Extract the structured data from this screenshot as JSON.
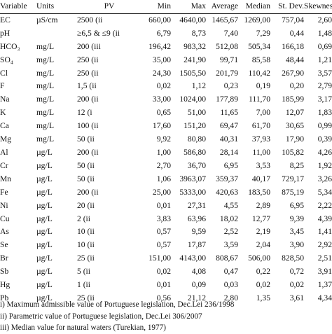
{
  "headers": [
    "Variable",
    "Units",
    "PV",
    "Min",
    "Max",
    "Average",
    "Median",
    "St. Dev.",
    "Skewness"
  ],
  "rows": [
    [
      "EC",
      "µS/cm",
      "2500 (ii",
      "660,00",
      "4640,00",
      "1465,67",
      "1269,00",
      "757,04",
      "2,60"
    ],
    [
      "pH",
      "",
      "≥6,5 & ≤9 (ii",
      "6,79",
      "8,73",
      "7,40",
      "7,29",
      "0,44",
      "1,48"
    ],
    [
      "HCO₃",
      "mg/L",
      "200 (iii",
      "196,42",
      "983,32",
      "512,08",
      "505,34",
      "166,18",
      "0,69"
    ],
    [
      "SO₄",
      "mg/L",
      "250 (ii",
      "35,00",
      "241,90",
      "99,71",
      "85,58",
      "48,44",
      "1,21"
    ],
    [
      "Cl",
      "mg/L",
      "250 (ii",
      "24,30",
      "1505,50",
      "201,79",
      "110,42",
      "267,90",
      "3,57"
    ],
    [
      "F",
      "mg/L",
      "1,5 (ii",
      "0,02",
      "1,12",
      "0,23",
      "0,19",
      "0,20",
      "2,79"
    ],
    [
      "Na",
      "mg/L",
      "200 (ii",
      "33,00",
      "1024,00",
      "177,89",
      "111,70",
      "185,99",
      "3,17"
    ],
    [
      "K",
      "mg/L",
      "12 (i",
      "0,65",
      "51,00",
      "11,65",
      "7,00",
      "12,07",
      "1,83"
    ],
    [
      "Ca",
      "mg/L",
      "100 (ii",
      "17,60",
      "151,20",
      "69,47",
      "61,70",
      "30,65",
      "0,99"
    ],
    [
      "Mg",
      "mg/L",
      "50 (ii",
      "9,92",
      "80,80",
      "40,31",
      "37,93",
      "17,90",
      "0,39"
    ],
    [
      "Al",
      "µg/L",
      "200 (ii",
      "1,00",
      "586,80",
      "28,14",
      "11,00",
      "105,82",
      "4,26"
    ],
    [
      "Cr",
      "µg/L",
      "50 (ii",
      "2,70",
      "36,70",
      "6,95",
      "3,53",
      "8,25",
      "1,92"
    ],
    [
      "Mn",
      "µg/L",
      "50 (ii",
      "1,06",
      "3963,07",
      "359,37",
      "40,17",
      "729,17",
      "3,26"
    ],
    [
      "Fe",
      "µg/L",
      "200 (ii",
      "25,00",
      "5333,00",
      "420,63",
      "183,50",
      "875,19",
      "5,34"
    ],
    [
      "Ni",
      "µg/L",
      "20 (ii",
      "0,01",
      "27,31",
      "4,55",
      "2,89",
      "6,95",
      "2,22"
    ],
    [
      "Cu",
      "µg/L",
      "2 (ii",
      "3,83",
      "63,96",
      "18,02",
      "12,77",
      "9,39",
      "4,39"
    ],
    [
      "As",
      "µg/L",
      "10 (ii",
      "0,57",
      "9,59",
      "2,52",
      "2,19",
      "3,45",
      "1,41"
    ],
    [
      "Se",
      "µg/L",
      "10 (ii",
      "0,57",
      "17,87",
      "3,59",
      "2,04",
      "3,90",
      "2,92"
    ],
    [
      "Br",
      "µg/L",
      "25 (ii",
      "151,00",
      "4143,00",
      "808,67",
      "506,00",
      "828,50",
      "2,51"
    ],
    [
      "Sb",
      "µg/L",
      "5 (ii",
      "0,02",
      "4,08",
      "0,47",
      "0,22",
      "0,72",
      "3,91"
    ],
    [
      "Hg",
      "µg/L",
      "1 (ii",
      "0,01",
      "0,09",
      "0,03",
      "0,02",
      "0,02",
      "1,37"
    ],
    [
      "Pb",
      "µg/L",
      "25 (ii",
      "0,56",
      "21,12",
      "2,80",
      "1,35",
      "3,61",
      "4,34"
    ]
  ],
  "footnotes": [
    "i) Maximum admissible value of Portuguese legislation, Dec.Lei 236/1998",
    "ii) Parametric value of Portuguese legislation, Dec.Lei 306/2007",
    "iii) Median value for natural waters (Turekian, 1977)"
  ]
}
